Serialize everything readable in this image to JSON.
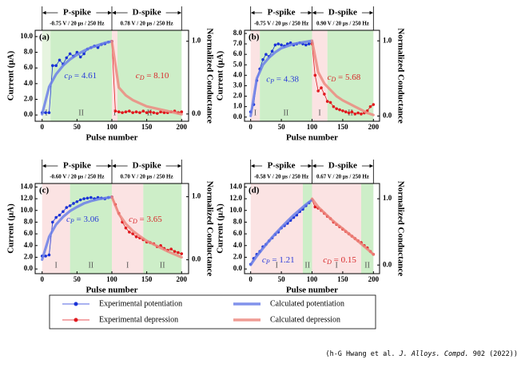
{
  "chart_data": [
    {
      "type": "line",
      "panel": "(a)",
      "p_spike": "P-spike",
      "d_spike": "D-spike",
      "p_cond": "-0.75 V / 20 μs / 250 Hz",
      "d_cond": "0.78 V / 20 μs / 250 Hz",
      "xlabel": "Pulse number",
      "ylabel": "Current (μA)",
      "y2label": "Normalized Conductance",
      "xlim": [
        -10,
        210
      ],
      "xticks": [
        0,
        50,
        100,
        150,
        200
      ],
      "ylim": [
        -0.8,
        10.8
      ],
      "yticks": [
        {
          "value": 0,
          "label": "0.0"
        },
        {
          "value": 2,
          "label": "2.0"
        },
        {
          "value": 4,
          "label": "4.0"
        },
        {
          "value": 6,
          "label": "6.0"
        },
        {
          "value": 8,
          "label": "8.0"
        },
        {
          "value": 10,
          "label": "10.0"
        }
      ],
      "y2lim": [
        -0.1,
        1.15
      ],
      "y2ticks": [
        {
          "value": 0,
          "label": "0.0"
        },
        {
          "value": 1,
          "label": "1.0"
        }
      ],
      "regions": [
        {
          "start": 0,
          "end": 12,
          "color": "#e6f4df",
          "label": "I"
        },
        {
          "start": 12,
          "end": 100,
          "color": "#cdeec8",
          "label": "II"
        },
        {
          "start": 100,
          "end": 108,
          "color": "#fbe3e3",
          "label": "I"
        },
        {
          "start": 108,
          "end": 200,
          "color": "#cdeec8",
          "label": "II"
        }
      ],
      "annotations": [
        {
          "main": "c",
          "sub": "P",
          "rest": " = 4.61",
          "color": "#2a3cd8"
        },
        {
          "main": "c",
          "sub": "D",
          "rest": " = 8.10",
          "color": "#d8282a"
        }
      ],
      "series": [
        {
          "style": "markers",
          "color": "#1a33d6",
          "x": [
            0,
            5,
            10,
            15,
            20,
            25,
            30,
            35,
            40,
            45,
            50,
            55,
            60,
            65,
            70,
            75,
            80,
            85,
            90,
            95,
            100
          ],
          "values": [
            0.3,
            0.3,
            0.3,
            6.3,
            6.3,
            7.0,
            6.5,
            7.3,
            7.8,
            7.5,
            8.0,
            7.4,
            7.8,
            8.4,
            8.6,
            8.8,
            8.6,
            9.0,
            9.1,
            9.3,
            9.4
          ]
        },
        {
          "style": "markers",
          "color": "#e0191e",
          "x": [
            100,
            105,
            110,
            115,
            120,
            125,
            130,
            135,
            140,
            145,
            150,
            155,
            160,
            165,
            170,
            175,
            180,
            185,
            190,
            195,
            200
          ],
          "values": [
            9.4,
            0.5,
            0.4,
            0.3,
            0.4,
            0.5,
            0.3,
            0.4,
            0.3,
            0.5,
            0.3,
            0.4,
            0.3,
            0.2,
            0.4,
            0.3,
            0.3,
            0.4,
            0.5,
            0.3,
            0.4
          ]
        },
        {
          "style": "curve",
          "color": "#6b7fe8",
          "x": [
            0,
            10,
            20,
            30,
            40,
            50,
            60,
            70,
            80,
            90,
            100
          ],
          "values": [
            0.1,
            3.6,
            5.2,
            6.3,
            7.1,
            7.7,
            8.2,
            8.6,
            8.9,
            9.2,
            9.4
          ]
        },
        {
          "style": "curve",
          "color": "#ec8a80",
          "x": [
            100,
            110,
            120,
            130,
            140,
            150,
            160,
            170,
            180,
            190,
            200
          ],
          "values": [
            9.4,
            3.5,
            2.5,
            1.9,
            1.5,
            1.1,
            0.9,
            0.7,
            0.5,
            0.3,
            0.1
          ]
        }
      ]
    },
    {
      "type": "line",
      "panel": "(b)",
      "p_spike": "P-spike",
      "d_spike": "D-spike",
      "p_cond": "-0.75 V / 20 μs / 250 Hz",
      "d_cond": "0.90 V / 20 μs / 250 Hz",
      "xlabel": "Pulse number",
      "ylabel": "Current (μA)",
      "y2label": "Normalized Conductance",
      "xlim": [
        -10,
        210
      ],
      "xticks": [
        0,
        50,
        100,
        150,
        200
      ],
      "ylim": [
        -0.4,
        8.3
      ],
      "yticks": [
        {
          "value": 0,
          "label": "0.0"
        },
        {
          "value": 1,
          "label": "1.0"
        },
        {
          "value": 2,
          "label": "2.0"
        },
        {
          "value": 3,
          "label": "3.0"
        },
        {
          "value": 4,
          "label": "4.0"
        },
        {
          "value": 5,
          "label": "5.0"
        },
        {
          "value": 6,
          "label": "6.0"
        },
        {
          "value": 7,
          "label": "7.0"
        },
        {
          "value": 8,
          "label": "8.0"
        }
      ],
      "y2lim": [
        -0.07,
        1.14
      ],
      "y2ticks": [
        {
          "value": 0,
          "label": "0.0"
        },
        {
          "value": 1,
          "label": "1.0"
        }
      ],
      "regions": [
        {
          "start": 0,
          "end": 15,
          "color": "#fbe3e3",
          "label": "I"
        },
        {
          "start": 15,
          "end": 100,
          "color": "#cdeec8",
          "label": "II"
        },
        {
          "start": 100,
          "end": 125,
          "color": "#fbe3e3",
          "label": "I"
        },
        {
          "start": 125,
          "end": 200,
          "color": "#cdeec8",
          "label": "II"
        }
      ],
      "annotations": [
        {
          "main": "c",
          "sub": "P",
          "rest": " = 4.38",
          "color": "#2a3cd8"
        },
        {
          "main": "c",
          "sub": "D",
          "rest": " = 5.68",
          "color": "#d8282a"
        }
      ],
      "series": [
        {
          "style": "markers",
          "color": "#1a33d6",
          "x": [
            0,
            5,
            10,
            15,
            20,
            25,
            30,
            35,
            40,
            45,
            50,
            55,
            60,
            65,
            70,
            75,
            80,
            85,
            90,
            95,
            100
          ],
          "values": [
            0.5,
            1.2,
            3.5,
            4.6,
            5.5,
            6.0,
            5.8,
            6.3,
            6.9,
            7.0,
            6.9,
            6.8,
            7.0,
            7.1,
            6.9,
            7.0,
            7.1,
            7.0,
            6.9,
            7.0,
            7.1
          ]
        },
        {
          "style": "markers",
          "color": "#e0191e",
          "x": [
            100,
            105,
            110,
            115,
            120,
            125,
            130,
            135,
            140,
            145,
            150,
            155,
            160,
            165,
            170,
            175,
            180,
            185,
            190,
            195,
            200
          ],
          "values": [
            7.0,
            4.0,
            2.5,
            2.8,
            2.2,
            1.5,
            1.4,
            1.0,
            0.8,
            0.7,
            0.6,
            0.5,
            0.4,
            0.5,
            0.3,
            0.4,
            0.3,
            0.4,
            0.6,
            1.0,
            1.2
          ]
        },
        {
          "style": "curve",
          "color": "#6b7fe8",
          "x": [
            0,
            10,
            20,
            30,
            40,
            50,
            60,
            70,
            80,
            90,
            100
          ],
          "values": [
            0.1,
            3.7,
            5.0,
            5.7,
            6.2,
            6.6,
            6.8,
            7.0,
            7.1,
            7.2,
            7.3
          ]
        },
        {
          "style": "curve",
          "color": "#ec8a80",
          "x": [
            100,
            110,
            120,
            130,
            140,
            150,
            160,
            170,
            180,
            190,
            200
          ],
          "values": [
            7.3,
            4.3,
            3.2,
            2.6,
            2.0,
            1.6,
            1.3,
            1.0,
            0.7,
            0.4,
            0.2
          ]
        }
      ]
    },
    {
      "type": "line",
      "panel": "(c)",
      "p_spike": "P-spike",
      "d_spike": "D-spike",
      "p_cond": "-0.60 V / 20 μs / 250 Hz",
      "d_cond": "0.70 V / 20 μs / 250 Hz",
      "xlabel": "Pulse number",
      "ylabel": "Current (μA)",
      "y2label": "Normalized Conductance",
      "xlim": [
        -10,
        210
      ],
      "xticks": [
        0,
        50,
        100,
        150,
        200
      ],
      "ylim": [
        -0.8,
        14.6
      ],
      "yticks": [
        {
          "value": 0,
          "label": "0.0"
        },
        {
          "value": 2,
          "label": "2.0"
        },
        {
          "value": 4,
          "label": "4.0"
        },
        {
          "value": 6,
          "label": "6.0"
        },
        {
          "value": 8,
          "label": "8.0"
        },
        {
          "value": 10,
          "label": "10.0"
        },
        {
          "value": 12,
          "label": "12.0"
        },
        {
          "value": 14,
          "label": "14.0"
        }
      ],
      "y2lim": [
        -0.22,
        1.21
      ],
      "y2ticks": [
        {
          "value": 0,
          "label": "0.0"
        },
        {
          "value": 1,
          "label": "1.0"
        }
      ],
      "regions": [
        {
          "start": 0,
          "end": 40,
          "color": "#fbe3e3",
          "label": "I"
        },
        {
          "start": 40,
          "end": 100,
          "color": "#cdeec8",
          "label": "II"
        },
        {
          "start": 100,
          "end": 145,
          "color": "#fbe3e3",
          "label": "I"
        },
        {
          "start": 145,
          "end": 200,
          "color": "#cdeec8",
          "label": "II"
        }
      ],
      "annotations": [
        {
          "main": "c",
          "sub": "P",
          "rest": " = 3.06",
          "color": "#2a3cd8"
        },
        {
          "main": "c",
          "sub": "D",
          "rest": " = 3.65",
          "color": "#d8282a"
        }
      ],
      "series": [
        {
          "style": "markers",
          "color": "#1a33d6",
          "x": [
            0,
            5,
            10,
            15,
            20,
            25,
            30,
            35,
            40,
            45,
            50,
            55,
            60,
            65,
            70,
            75,
            80,
            85,
            90,
            95,
            100
          ],
          "values": [
            2.2,
            2.2,
            2.4,
            8.0,
            8.8,
            9.2,
            9.8,
            10.5,
            10.8,
            11.2,
            11.5,
            11.8,
            12.0,
            12.1,
            12.2,
            12.0,
            12.2,
            12.1,
            12.0,
            12.2,
            12.3
          ]
        },
        {
          "style": "markers",
          "color": "#e0191e",
          "x": [
            100,
            105,
            110,
            115,
            120,
            125,
            130,
            135,
            140,
            145,
            150,
            155,
            160,
            165,
            170,
            175,
            180,
            185,
            190,
            195,
            200
          ],
          "values": [
            12.3,
            11.0,
            9.5,
            8.0,
            7.0,
            6.3,
            6.0,
            5.5,
            5.3,
            5.0,
            4.6,
            4.5,
            4.3,
            3.8,
            4.0,
            3.5,
            3.2,
            3.4,
            3.0,
            2.8,
            2.6
          ]
        },
        {
          "style": "curve",
          "color": "#6b7fe8",
          "x": [
            0,
            10,
            20,
            30,
            40,
            50,
            60,
            70,
            80,
            90,
            100
          ],
          "values": [
            1.6,
            5.5,
            7.6,
            8.9,
            9.9,
            10.6,
            11.2,
            11.6,
            11.9,
            12.1,
            12.3
          ]
        },
        {
          "style": "curve",
          "color": "#ec8a80",
          "x": [
            100,
            110,
            120,
            130,
            140,
            150,
            160,
            170,
            180,
            190,
            200
          ],
          "values": [
            12.3,
            9.4,
            7.7,
            6.5,
            5.6,
            4.8,
            4.2,
            3.6,
            3.0,
            2.5,
            2.0
          ]
        }
      ]
    },
    {
      "type": "line",
      "panel": "(d)",
      "p_spike": "P-spike",
      "d_spike": "D-spike",
      "p_cond": "-0.58 V / 20 μs / 250 Hz",
      "d_cond": "0.67 V / 20 μs / 250 Hz",
      "xlabel": "Pulse number",
      "ylabel": "Current (μA)",
      "y2label": "Normalized Conductance",
      "xlim": [
        -10,
        210
      ],
      "xticks": [
        0,
        50,
        100,
        150,
        200
      ],
      "ylim": [
        -0.8,
        14.6
      ],
      "yticks": [
        {
          "value": 0,
          "label": "0.0"
        },
        {
          "value": 2,
          "label": "2.0"
        },
        {
          "value": 4,
          "label": "4.0"
        },
        {
          "value": 6,
          "label": "6.0"
        },
        {
          "value": 8,
          "label": "8.0"
        },
        {
          "value": 10,
          "label": "10.0"
        },
        {
          "value": 12,
          "label": "12.0"
        },
        {
          "value": 14,
          "label": "14.0"
        }
      ],
      "y2lim": [
        -0.13,
        1.23
      ],
      "y2ticks": [
        {
          "value": 0,
          "label": "0.0"
        },
        {
          "value": 1,
          "label": "1.0"
        }
      ],
      "regions": [
        {
          "start": 0,
          "end": 85,
          "color": "#fbe3e3",
          "label": "I"
        },
        {
          "start": 85,
          "end": 100,
          "color": "#cdeec8",
          "label": "II"
        },
        {
          "start": 100,
          "end": 180,
          "color": "#fbe3e3",
          "label": "I"
        },
        {
          "start": 180,
          "end": 200,
          "color": "#cdeec8",
          "label": "II"
        }
      ],
      "annotations": [
        {
          "main": "c",
          "sub": "P",
          "rest": " = 1.21",
          "color": "#2a3cd8"
        },
        {
          "main": "c",
          "sub": "D",
          "rest": " = 0.15",
          "color": "#d8282a"
        }
      ],
      "series": [
        {
          "style": "markers",
          "color": "#1a33d6",
          "x": [
            0,
            5,
            10,
            15,
            20,
            25,
            30,
            35,
            40,
            45,
            50,
            55,
            60,
            65,
            70,
            75,
            80,
            85,
            90,
            95,
            100
          ],
          "values": [
            0.8,
            1.8,
            2.5,
            3.0,
            3.8,
            4.2,
            4.8,
            5.3,
            5.9,
            6.3,
            7.0,
            7.4,
            7.8,
            8.3,
            8.8,
            9.2,
            9.8,
            10.2,
            10.8,
            11.3,
            11.8
          ]
        },
        {
          "style": "markers",
          "color": "#e0191e",
          "x": [
            100,
            105,
            110,
            115,
            120,
            125,
            130,
            135,
            140,
            145,
            150,
            155,
            160,
            165,
            170,
            175,
            180,
            185,
            190,
            195,
            200
          ],
          "values": [
            11.8,
            10.6,
            10.4,
            10.0,
            9.5,
            9.0,
            8.6,
            8.0,
            7.6,
            7.2,
            6.8,
            6.4,
            6.0,
            5.6,
            5.2,
            4.8,
            4.5,
            4.0,
            3.6,
            3.0,
            2.5
          ]
        },
        {
          "style": "curve",
          "color": "#6b7fe8",
          "x": [
            0,
            10,
            20,
            30,
            40,
            50,
            60,
            70,
            80,
            90,
            100
          ],
          "values": [
            0.7,
            2.2,
            3.5,
            4.8,
            6.0,
            7.1,
            8.2,
            9.2,
            10.1,
            11.0,
            11.8
          ]
        },
        {
          "style": "curve",
          "color": "#ec8a80",
          "x": [
            100,
            110,
            120,
            130,
            140,
            150,
            160,
            170,
            180,
            190,
            200
          ],
          "values": [
            12.0,
            10.6,
            9.6,
            8.6,
            7.7,
            6.9,
            6.0,
            5.2,
            4.3,
            3.4,
            2.5
          ]
        }
      ]
    }
  ],
  "legend": [
    {
      "name": "Experimental potentiation",
      "color": "#1a33d6",
      "style": "markers"
    },
    {
      "name": "Experimental depression",
      "color": "#e0191e",
      "style": "markers"
    },
    {
      "name": "Calculated potentiation",
      "color": "#6b7fe8",
      "style": "curve"
    },
    {
      "name": "Calculated depression",
      "color": "#ec8a80",
      "style": "curve"
    }
  ],
  "citation": {
    "pre": "(h-G Hwang et al. ",
    "journal": "J. Alloys. Compd.",
    "post": " 902 (2022))"
  }
}
